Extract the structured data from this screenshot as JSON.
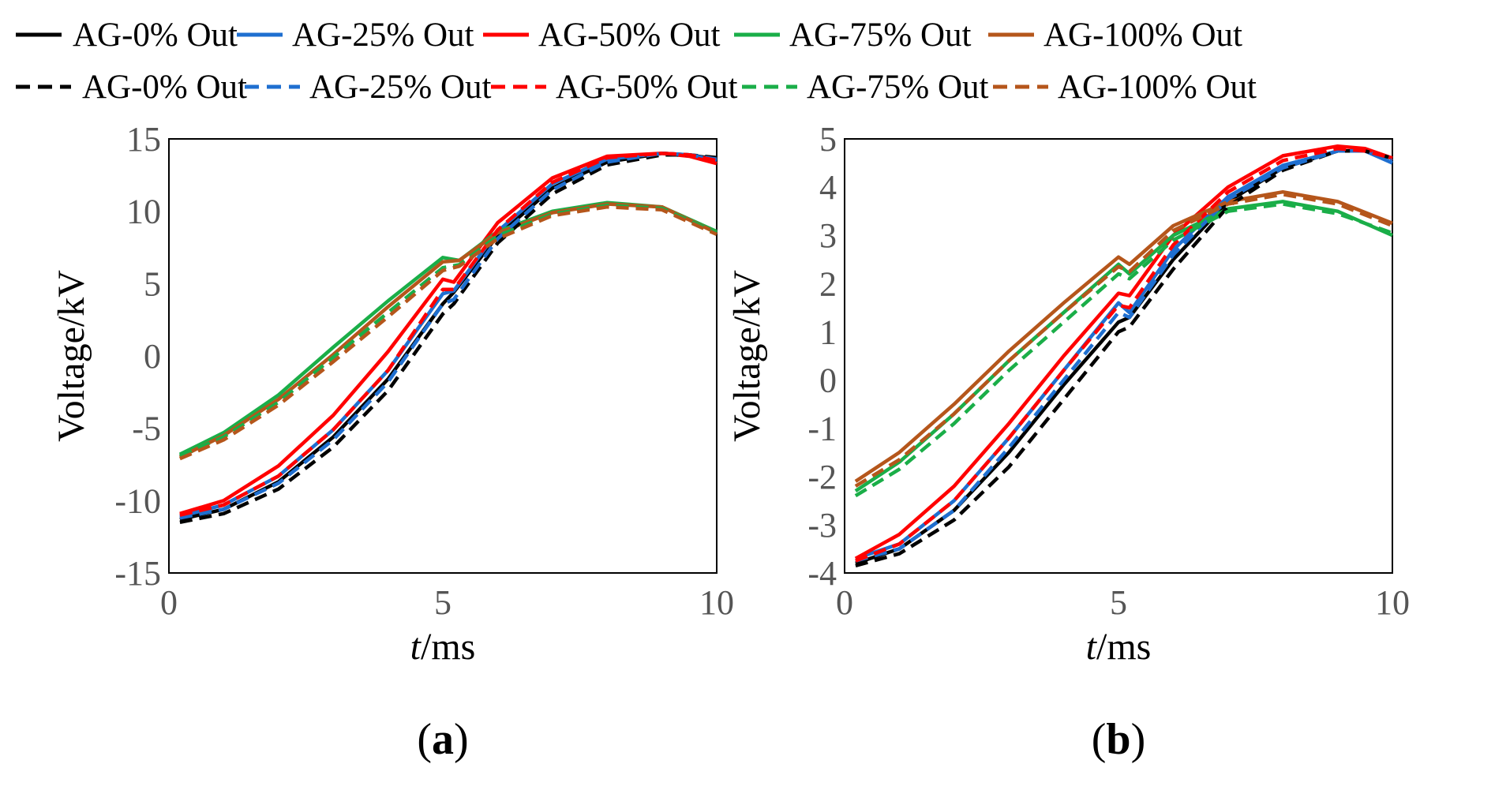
{
  "legend": {
    "solid": [
      {
        "label": "AG-0% Out",
        "color": "#000000"
      },
      {
        "label": "AG-25% Out",
        "color": "#1f6fd0"
      },
      {
        "label": "AG-50% Out",
        "color": "#ff0000"
      },
      {
        "label": "AG-75% Out",
        "color": "#1aae48"
      },
      {
        "label": "AG-100% Out",
        "color": "#b5561b"
      }
    ],
    "dashed": [
      {
        "label": "AG-0% Out",
        "color": "#000000"
      },
      {
        "label": "AG-25% Out",
        "color": "#1f6fd0"
      },
      {
        "label": "AG-50% Out",
        "color": "#ff0000"
      },
      {
        "label": "AG-75% Out",
        "color": "#1aae48"
      },
      {
        "label": "AG-100% Out",
        "color": "#b5561b"
      }
    ]
  },
  "chart_data": [
    {
      "type": "line",
      "panel_label": "(a)",
      "panel_letter": "a",
      "xlabel_italic": "t",
      "xlabel_rest": "/ms",
      "ylabel": "Voltage/kV",
      "xlim": [
        0,
        10
      ],
      "ylim": [
        -15,
        15
      ],
      "xticks": [
        "0",
        "5",
        "10"
      ],
      "yticks": [
        "15",
        "10",
        "5",
        "0",
        "-5",
        "-10",
        "-15"
      ],
      "series": [
        {
          "name": "AG-0% Out",
          "style": "solid",
          "color": "#000000",
          "x": [
            0.2,
            1,
            2,
            3,
            4,
            5,
            5.2,
            6,
            7,
            8,
            9,
            9.5,
            10
          ],
          "y": [
            -11.3,
            -10.6,
            -8.7,
            -5.6,
            -1.6,
            3.6,
            4.4,
            8.3,
            11.6,
            13.4,
            14.0,
            13.9,
            13.6
          ]
        },
        {
          "name": "AG-25% Out",
          "style": "solid",
          "color": "#1f6fd0",
          "x": [
            0.2,
            1,
            2,
            3,
            4,
            5,
            5.2,
            6,
            7,
            8,
            9,
            9.5,
            10
          ],
          "y": [
            -11.1,
            -10.3,
            -8.3,
            -5.1,
            -1.0,
            4.3,
            4.5,
            8.6,
            11.9,
            13.6,
            14.0,
            13.9,
            13.5
          ]
        },
        {
          "name": "AG-50% Out",
          "style": "solid",
          "color": "#ff0000",
          "x": [
            0.2,
            1,
            2,
            3,
            4,
            5,
            5.2,
            6,
            7,
            8,
            9,
            9.5,
            10
          ],
          "y": [
            -10.9,
            -10.0,
            -7.6,
            -4.1,
            0.3,
            5.3,
            5.1,
            9.2,
            12.3,
            13.8,
            14.0,
            13.8,
            13.3
          ]
        },
        {
          "name": "AG-75% Out",
          "style": "solid",
          "color": "#1aae48",
          "x": [
            0.2,
            1,
            2,
            3,
            4,
            5,
            5.3,
            6,
            7,
            8,
            9,
            10
          ],
          "y": [
            -6.8,
            -5.3,
            -2.7,
            0.6,
            3.8,
            6.8,
            6.6,
            8.6,
            10.0,
            10.6,
            10.3,
            8.6
          ]
        },
        {
          "name": "AG-100% Out",
          "style": "solid",
          "color": "#b5561b",
          "x": [
            0.2,
            1,
            2,
            3,
            4,
            5,
            5.3,
            6,
            7,
            8,
            9,
            10
          ],
          "y": [
            -7.0,
            -5.5,
            -3.0,
            0.1,
            3.4,
            6.5,
            6.6,
            8.5,
            9.9,
            10.5,
            10.3,
            8.5
          ]
        },
        {
          "name": "AG-0% Out",
          "style": "dashed",
          "color": "#000000",
          "x": [
            0.2,
            1,
            2,
            3,
            4,
            5,
            5.2,
            6,
            7,
            8,
            9,
            9.5,
            10
          ],
          "y": [
            -11.5,
            -10.9,
            -9.2,
            -6.3,
            -2.4,
            2.9,
            3.6,
            7.8,
            11.2,
            13.2,
            13.9,
            13.9,
            13.7
          ]
        },
        {
          "name": "AG-25% Out",
          "style": "dashed",
          "color": "#1f6fd0",
          "x": [
            0.2,
            1,
            2,
            3,
            4,
            5,
            5.2,
            6,
            7,
            8,
            9,
            9.5,
            10
          ],
          "y": [
            -11.2,
            -10.6,
            -8.8,
            -5.8,
            -1.8,
            3.6,
            3.9,
            8.1,
            11.5,
            13.4,
            14.0,
            13.9,
            13.6
          ]
        },
        {
          "name": "AG-50% Out",
          "style": "dashed",
          "color": "#ff0000",
          "x": [
            0.2,
            1,
            2,
            3,
            4,
            5,
            5.2,
            6,
            7,
            8,
            9,
            9.5,
            10
          ],
          "y": [
            -11.0,
            -10.3,
            -8.3,
            -5.1,
            -1.0,
            4.6,
            4.6,
            8.7,
            12.0,
            13.7,
            14.0,
            13.9,
            13.5
          ]
        },
        {
          "name": "AG-75% Out",
          "style": "dashed",
          "color": "#1aae48",
          "x": [
            0.2,
            1,
            2,
            3,
            4,
            5,
            5.3,
            6,
            7,
            8,
            9,
            10
          ],
          "y": [
            -6.9,
            -5.6,
            -3.2,
            -0.1,
            3.0,
            6.1,
            6.3,
            8.3,
            9.8,
            10.4,
            10.2,
            8.5
          ]
        },
        {
          "name": "AG-100% Out",
          "style": "dashed",
          "color": "#b5561b",
          "x": [
            0.2,
            1,
            2,
            3,
            4,
            5,
            5.3,
            6,
            7,
            8,
            9,
            10
          ],
          "y": [
            -7.1,
            -5.8,
            -3.4,
            -0.4,
            2.7,
            5.9,
            6.2,
            8.1,
            9.7,
            10.3,
            10.1,
            8.4
          ]
        }
      ]
    },
    {
      "type": "line",
      "panel_label": "(b)",
      "panel_letter": "b",
      "xlabel_italic": "t",
      "xlabel_rest": "/ms",
      "ylabel": "Voltage/kV",
      "xlim": [
        0,
        10
      ],
      "ylim": [
        -4,
        5
      ],
      "xticks": [
        "0",
        "5",
        "10"
      ],
      "yticks": [
        "5",
        "4",
        "3",
        "2",
        "1",
        "0",
        "-1",
        "-2",
        "-3",
        "-4"
      ],
      "series": [
        {
          "name": "AG-0% Out",
          "style": "solid",
          "color": "#000000",
          "x": [
            0.2,
            1,
            2,
            3,
            4,
            5,
            5.2,
            6,
            7,
            8,
            9,
            9.5,
            10
          ],
          "y": [
            -3.8,
            -3.5,
            -2.7,
            -1.5,
            -0.1,
            1.2,
            1.3,
            2.5,
            3.7,
            4.4,
            4.75,
            4.75,
            4.6
          ]
        },
        {
          "name": "AG-25% Out",
          "style": "solid",
          "color": "#1f6fd0",
          "x": [
            0.2,
            1,
            2,
            3,
            4,
            5,
            5.2,
            6,
            7,
            8,
            9,
            9.5,
            10
          ],
          "y": [
            -3.7,
            -3.4,
            -2.5,
            -1.2,
            0.2,
            1.6,
            1.4,
            2.7,
            3.8,
            4.45,
            4.75,
            4.75,
            4.5
          ]
        },
        {
          "name": "AG-50% Out",
          "style": "solid",
          "color": "#ff0000",
          "x": [
            0.2,
            1,
            2,
            3,
            4,
            5,
            5.2,
            6,
            7,
            8,
            9,
            9.5,
            10
          ],
          "y": [
            -3.7,
            -3.2,
            -2.2,
            -0.9,
            0.5,
            1.8,
            1.75,
            3.0,
            4.0,
            4.65,
            4.85,
            4.8,
            4.6
          ]
        },
        {
          "name": "AG-75% Out",
          "style": "solid",
          "color": "#1aae48",
          "x": [
            0.2,
            1,
            2,
            3,
            4,
            5,
            5.2,
            6,
            7,
            8,
            9,
            10
          ],
          "y": [
            -2.3,
            -1.7,
            -0.7,
            0.4,
            1.4,
            2.4,
            2.2,
            3.0,
            3.55,
            3.7,
            3.5,
            3.0
          ]
        },
        {
          "name": "AG-100% Out",
          "style": "solid",
          "color": "#b5561b",
          "x": [
            0.2,
            1,
            2,
            3,
            4,
            5,
            5.2,
            6,
            7,
            8,
            9,
            10
          ],
          "y": [
            -2.1,
            -1.5,
            -0.5,
            0.6,
            1.6,
            2.55,
            2.4,
            3.2,
            3.7,
            3.9,
            3.7,
            3.25
          ]
        },
        {
          "name": "AG-0% Out",
          "style": "dashed",
          "color": "#000000",
          "x": [
            0.2,
            1,
            2,
            3,
            4,
            5,
            5.2,
            6,
            7,
            8,
            9,
            9.5,
            10
          ],
          "y": [
            -3.85,
            -3.6,
            -2.9,
            -1.8,
            -0.4,
            1.0,
            1.1,
            2.3,
            3.6,
            4.35,
            4.75,
            4.75,
            4.6
          ]
        },
        {
          "name": "AG-25% Out",
          "style": "dashed",
          "color": "#1f6fd0",
          "x": [
            0.2,
            1,
            2,
            3,
            4,
            5,
            5.2,
            6,
            7,
            8,
            9,
            9.5,
            10
          ],
          "y": [
            -3.75,
            -3.5,
            -2.7,
            -1.4,
            0.0,
            1.4,
            1.3,
            2.6,
            3.75,
            4.4,
            4.75,
            4.75,
            4.55
          ]
        },
        {
          "name": "AG-50% Out",
          "style": "dashed",
          "color": "#ff0000",
          "x": [
            0.2,
            1,
            2,
            3,
            4,
            5,
            5.2,
            6,
            7,
            8,
            9,
            9.5,
            10
          ],
          "y": [
            -3.75,
            -3.4,
            -2.5,
            -1.2,
            0.2,
            1.55,
            1.5,
            2.8,
            3.9,
            4.55,
            4.8,
            4.75,
            4.6
          ]
        },
        {
          "name": "AG-75% Out",
          "style": "dashed",
          "color": "#1aae48",
          "x": [
            0.2,
            1,
            2,
            3,
            4,
            5,
            5.2,
            6,
            7,
            8,
            9,
            10
          ],
          "y": [
            -2.4,
            -1.85,
            -0.9,
            0.2,
            1.2,
            2.2,
            2.1,
            2.9,
            3.5,
            3.65,
            3.45,
            3.05
          ]
        },
        {
          "name": "AG-100% Out",
          "style": "dashed",
          "color": "#b5561b",
          "x": [
            0.2,
            1,
            2,
            3,
            4,
            5,
            5.2,
            6,
            7,
            8,
            9,
            10
          ],
          "y": [
            -2.2,
            -1.65,
            -0.7,
            0.4,
            1.4,
            2.35,
            2.25,
            3.1,
            3.65,
            3.85,
            3.65,
            3.2
          ]
        }
      ]
    }
  ]
}
